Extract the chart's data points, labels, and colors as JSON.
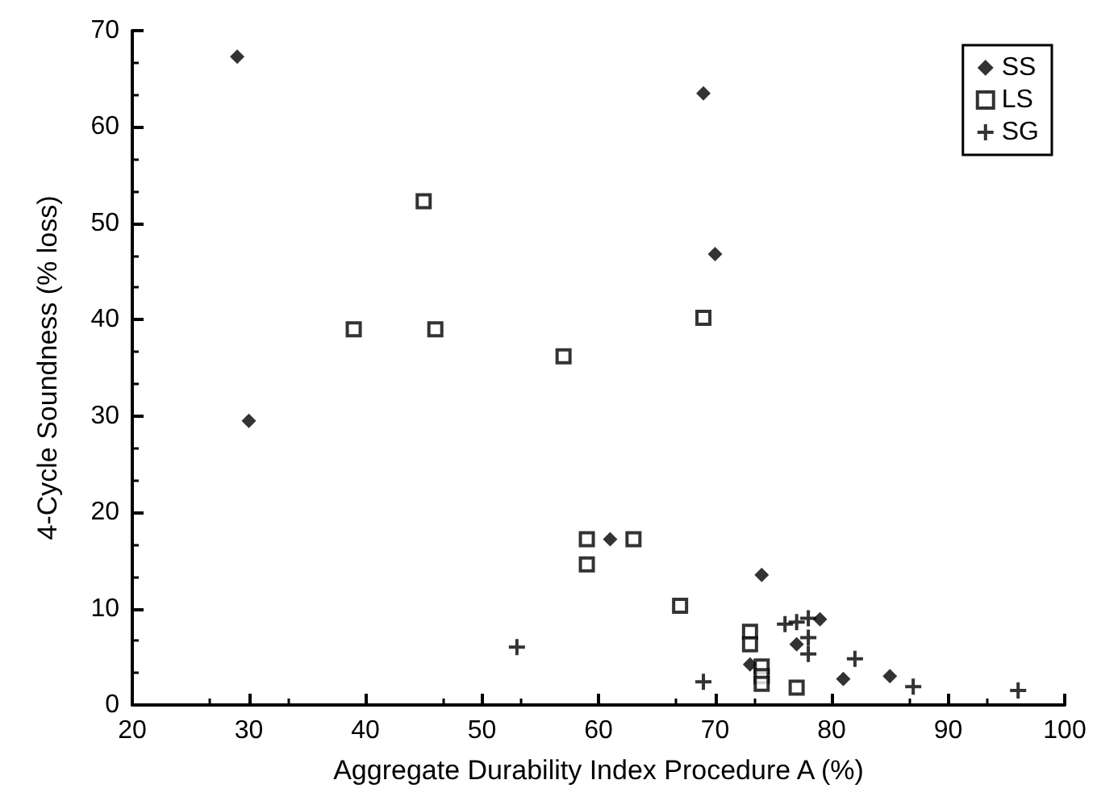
{
  "chart_data": {
    "type": "scatter",
    "xlabel": "Aggregate Durability Index Procedure A (%)",
    "ylabel": "4-Cycle Soundness (% loss)",
    "xlim": [
      20,
      100
    ],
    "xticks": [
      20,
      30,
      40,
      50,
      60,
      70,
      80,
      90,
      100
    ],
    "ylim": [
      0,
      70
    ],
    "yticks": [
      0,
      10,
      20,
      30,
      40,
      50,
      60,
      70
    ],
    "grid": false,
    "legend": "top right",
    "series": [
      {
        "name": "SS",
        "color": "#000000",
        "marker": "diamond",
        "x": [
          29,
          30,
          69,
          70,
          61,
          74,
          73,
          77,
          79,
          81,
          85
        ],
        "values": [
          67.3,
          29.5,
          63.5,
          46.8,
          17.2,
          13.5,
          4.2,
          6.3,
          8.9,
          2.7,
          3.0
        ]
      },
      {
        "name": "LS",
        "color": "#000000",
        "marker": "square",
        "x": [
          45,
          39,
          46,
          57,
          69,
          59,
          59,
          63,
          67,
          73,
          73,
          74,
          74,
          74,
          77
        ],
        "values": [
          52.3,
          39,
          39,
          36.2,
          40.2,
          17.2,
          14.6,
          17.2,
          10.3,
          7.6,
          6.3,
          4.0,
          3.0,
          2.2,
          1.8
        ]
      },
      {
        "name": "SG",
        "color": "#000000",
        "marker": "cross",
        "x": [
          53,
          69,
          76,
          77,
          78,
          78,
          78,
          82,
          87,
          96
        ],
        "values": [
          6.0,
          2.4,
          8.4,
          8.6,
          9.0,
          7.0,
          5.3,
          4.8,
          1.9,
          1.5
        ]
      }
    ]
  }
}
